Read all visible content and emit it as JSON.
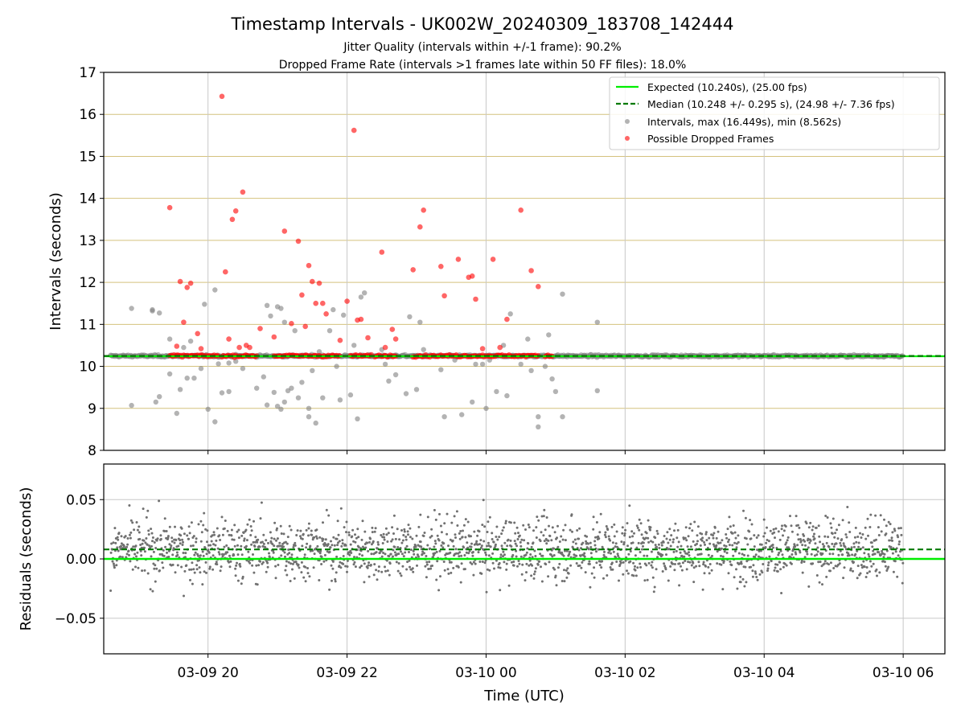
{
  "chart_data": {
    "title": "Timestamp Intervals - UK002W_20240309_183708_142444",
    "subtitle_lines": [
      "Jitter Quality (intervals within +/-1 frame): 90.2%",
      "Dropped Frame Rate (intervals >1 frames late within 50 FF files): 18.0%"
    ],
    "xlabel": "Time (UTC)",
    "x_ticks": [
      "03-09 20",
      "03-09 22",
      "03-10 00",
      "03-10 02",
      "03-10 04",
      "03-10 06"
    ],
    "x_range_hours": [
      18.5,
      30.6
    ],
    "x_tick_hours": [
      20,
      22,
      24,
      26,
      28,
      30
    ],
    "colors": {
      "expected": "#00ee00",
      "median": "#007a00",
      "intervals": "#808080",
      "dropped": "#ff0000",
      "hgrid_top": "#d4c27e",
      "grid": "#c8c8c8"
    },
    "top": {
      "type": "scatter",
      "ylabel": "Intervals (seconds)",
      "ylim": [
        8,
        17
      ],
      "y_ticks": [
        "8",
        "9",
        "10",
        "11",
        "12",
        "13",
        "14",
        "15",
        "16",
        "17"
      ],
      "expected_y": 10.24,
      "median_y": 10.248,
      "baseline_x_range": [
        18.6,
        30.0
      ],
      "legend": {
        "placement": "top-right",
        "entries": [
          {
            "label": "Expected (10.240s), (25.00 fps)",
            "style": "solid-line",
            "color_key": "expected"
          },
          {
            "label": "Median (10.248 +/- 0.295 s), (24.98 +/- 7.36 fps)",
            "style": "dashed-line",
            "color_key": "median"
          },
          {
            "label": "Intervals, max (16.449s), min (8.562s)",
            "style": "dot",
            "color_key": "intervals"
          },
          {
            "label": "Possible Dropped Frames",
            "style": "dot",
            "color_key": "dropped"
          }
        ]
      },
      "series": [
        {
          "name": "Intervals, max (16.449s), min (8.562s)",
          "points": [
            [
              18.9,
              11.38
            ],
            [
              18.9,
              9.07
            ],
            [
              19.2,
              11.35
            ],
            [
              19.2,
              11.32
            ],
            [
              19.25,
              9.15
            ],
            [
              19.3,
              11.27
            ],
            [
              19.3,
              9.28
            ],
            [
              19.45,
              10.65
            ],
            [
              19.45,
              9.82
            ],
            [
              19.55,
              8.88
            ],
            [
              19.6,
              9.45
            ],
            [
              19.65,
              10.45
            ],
            [
              19.7,
              9.72
            ],
            [
              19.75,
              10.6
            ],
            [
              19.8,
              9.72
            ],
            [
              19.9,
              9.95
            ],
            [
              19.95,
              11.48
            ],
            [
              20.0,
              8.98
            ],
            [
              20.1,
              11.82
            ],
            [
              20.1,
              8.68
            ],
            [
              20.15,
              10.06
            ],
            [
              20.2,
              9.37
            ],
            [
              20.3,
              10.08
            ],
            [
              20.3,
              9.4
            ],
            [
              20.4,
              10.12
            ],
            [
              20.5,
              9.95
            ],
            [
              20.7,
              9.48
            ],
            [
              20.8,
              9.75
            ],
            [
              20.85,
              11.45
            ],
            [
              20.85,
              9.08
            ],
            [
              20.9,
              11.2
            ],
            [
              20.95,
              9.38
            ],
            [
              21.0,
              11.42
            ],
            [
              21.0,
              9.05
            ],
            [
              21.05,
              11.38
            ],
            [
              21.05,
              8.98
            ],
            [
              21.1,
              11.05
            ],
            [
              21.1,
              9.15
            ],
            [
              21.15,
              9.42
            ],
            [
              21.2,
              9.48
            ],
            [
              21.25,
              10.85
            ],
            [
              21.3,
              9.25
            ],
            [
              21.35,
              9.62
            ],
            [
              21.45,
              9.0
            ],
            [
              21.45,
              8.8
            ],
            [
              21.5,
              9.9
            ],
            [
              21.55,
              8.65
            ],
            [
              21.6,
              10.35
            ],
            [
              21.65,
              9.25
            ],
            [
              21.75,
              10.85
            ],
            [
              21.8,
              11.35
            ],
            [
              21.85,
              10.0
            ],
            [
              21.9,
              9.2
            ],
            [
              21.95,
              11.22
            ],
            [
              22.05,
              9.32
            ],
            [
              22.1,
              10.5
            ],
            [
              22.15,
              8.75
            ],
            [
              22.2,
              11.65
            ],
            [
              22.25,
              11.75
            ],
            [
              22.5,
              10.4
            ],
            [
              22.55,
              10.05
            ],
            [
              22.6,
              9.65
            ],
            [
              22.7,
              9.8
            ],
            [
              22.85,
              9.35
            ],
            [
              22.9,
              11.18
            ],
            [
              23.0,
              9.45
            ],
            [
              23.05,
              11.05
            ],
            [
              23.1,
              10.4
            ],
            [
              23.35,
              9.92
            ],
            [
              23.4,
              8.8
            ],
            [
              23.55,
              10.15
            ],
            [
              23.65,
              8.85
            ],
            [
              23.8,
              9.15
            ],
            [
              23.85,
              10.05
            ],
            [
              23.95,
              10.05
            ],
            [
              24.0,
              9.0
            ],
            [
              24.05,
              10.15
            ],
            [
              24.15,
              9.4
            ],
            [
              24.25,
              10.5
            ],
            [
              24.3,
              9.3
            ],
            [
              24.35,
              11.25
            ],
            [
              24.5,
              10.05
            ],
            [
              24.6,
              10.65
            ],
            [
              24.65,
              9.9
            ],
            [
              24.75,
              8.8
            ],
            [
              24.75,
              8.56
            ],
            [
              24.85,
              10.0
            ],
            [
              24.9,
              10.75
            ],
            [
              24.95,
              9.7
            ],
            [
              25.0,
              9.4
            ],
            [
              25.1,
              11.72
            ],
            [
              25.1,
              8.8
            ],
            [
              25.6,
              11.05
            ],
            [
              25.6,
              9.42
            ]
          ]
        },
        {
          "name": "Possible Dropped Frames",
          "points": [
            [
              19.45,
              13.78
            ],
            [
              19.55,
              10.48
            ],
            [
              19.6,
              12.02
            ],
            [
              19.65,
              11.05
            ],
            [
              19.7,
              11.88
            ],
            [
              19.75,
              11.98
            ],
            [
              19.85,
              10.78
            ],
            [
              19.9,
              10.42
            ],
            [
              20.2,
              16.43
            ],
            [
              20.25,
              12.25
            ],
            [
              20.3,
              10.65
            ],
            [
              20.35,
              13.5
            ],
            [
              20.4,
              13.7
            ],
            [
              20.45,
              10.45
            ],
            [
              20.5,
              14.15
            ],
            [
              20.55,
              10.5
            ],
            [
              20.6,
              10.45
            ],
            [
              20.75,
              10.9
            ],
            [
              20.95,
              10.7
            ],
            [
              21.1,
              13.22
            ],
            [
              21.2,
              11.02
            ],
            [
              21.3,
              12.98
            ],
            [
              21.35,
              11.7
            ],
            [
              21.4,
              10.95
            ],
            [
              21.45,
              12.4
            ],
            [
              21.5,
              12.02
            ],
            [
              21.55,
              11.5
            ],
            [
              21.6,
              11.98
            ],
            [
              21.65,
              11.5
            ],
            [
              21.7,
              11.25
            ],
            [
              21.9,
              10.62
            ],
            [
              22.0,
              11.55
            ],
            [
              22.1,
              15.62
            ],
            [
              22.15,
              11.1
            ],
            [
              22.2,
              11.12
            ],
            [
              22.3,
              10.68
            ],
            [
              22.5,
              12.72
            ],
            [
              22.55,
              10.45
            ],
            [
              22.65,
              10.88
            ],
            [
              22.7,
              10.65
            ],
            [
              22.95,
              12.3
            ],
            [
              23.05,
              13.32
            ],
            [
              23.1,
              13.72
            ],
            [
              23.35,
              12.38
            ],
            [
              23.4,
              11.68
            ],
            [
              23.6,
              12.55
            ],
            [
              23.75,
              12.12
            ],
            [
              23.8,
              12.15
            ],
            [
              23.85,
              11.6
            ],
            [
              23.95,
              10.42
            ],
            [
              24.1,
              12.55
            ],
            [
              24.2,
              10.45
            ],
            [
              24.3,
              11.12
            ],
            [
              24.5,
              13.72
            ],
            [
              24.65,
              12.28
            ],
            [
              24.75,
              11.9
            ]
          ],
          "band_clusters": [
            [
              19.45,
              20.15
            ],
            [
              20.2,
              20.7
            ],
            [
              20.95,
              21.9
            ],
            [
              22.05,
              22.35
            ],
            [
              22.4,
              22.7
            ],
            [
              22.95,
              24.05
            ],
            [
              24.05,
              24.75
            ],
            [
              24.85,
              24.95
            ]
          ],
          "band_y": 10.25
        }
      ]
    },
    "bottom": {
      "type": "scatter",
      "ylabel": "Residuals (seconds)",
      "ylim": [
        -0.08,
        0.08
      ],
      "y_tick_values": [
        -0.05,
        0.0,
        0.05
      ],
      "y_ticks": [
        "−0.05",
        "0.00",
        "0.05"
      ],
      "expected_y": 0.0,
      "median_y": 0.008,
      "residual_x_range": [
        18.6,
        30.0
      ],
      "residual_spread": "about ±0.07 s, roughly symmetric, denser near 0.00"
    }
  }
}
